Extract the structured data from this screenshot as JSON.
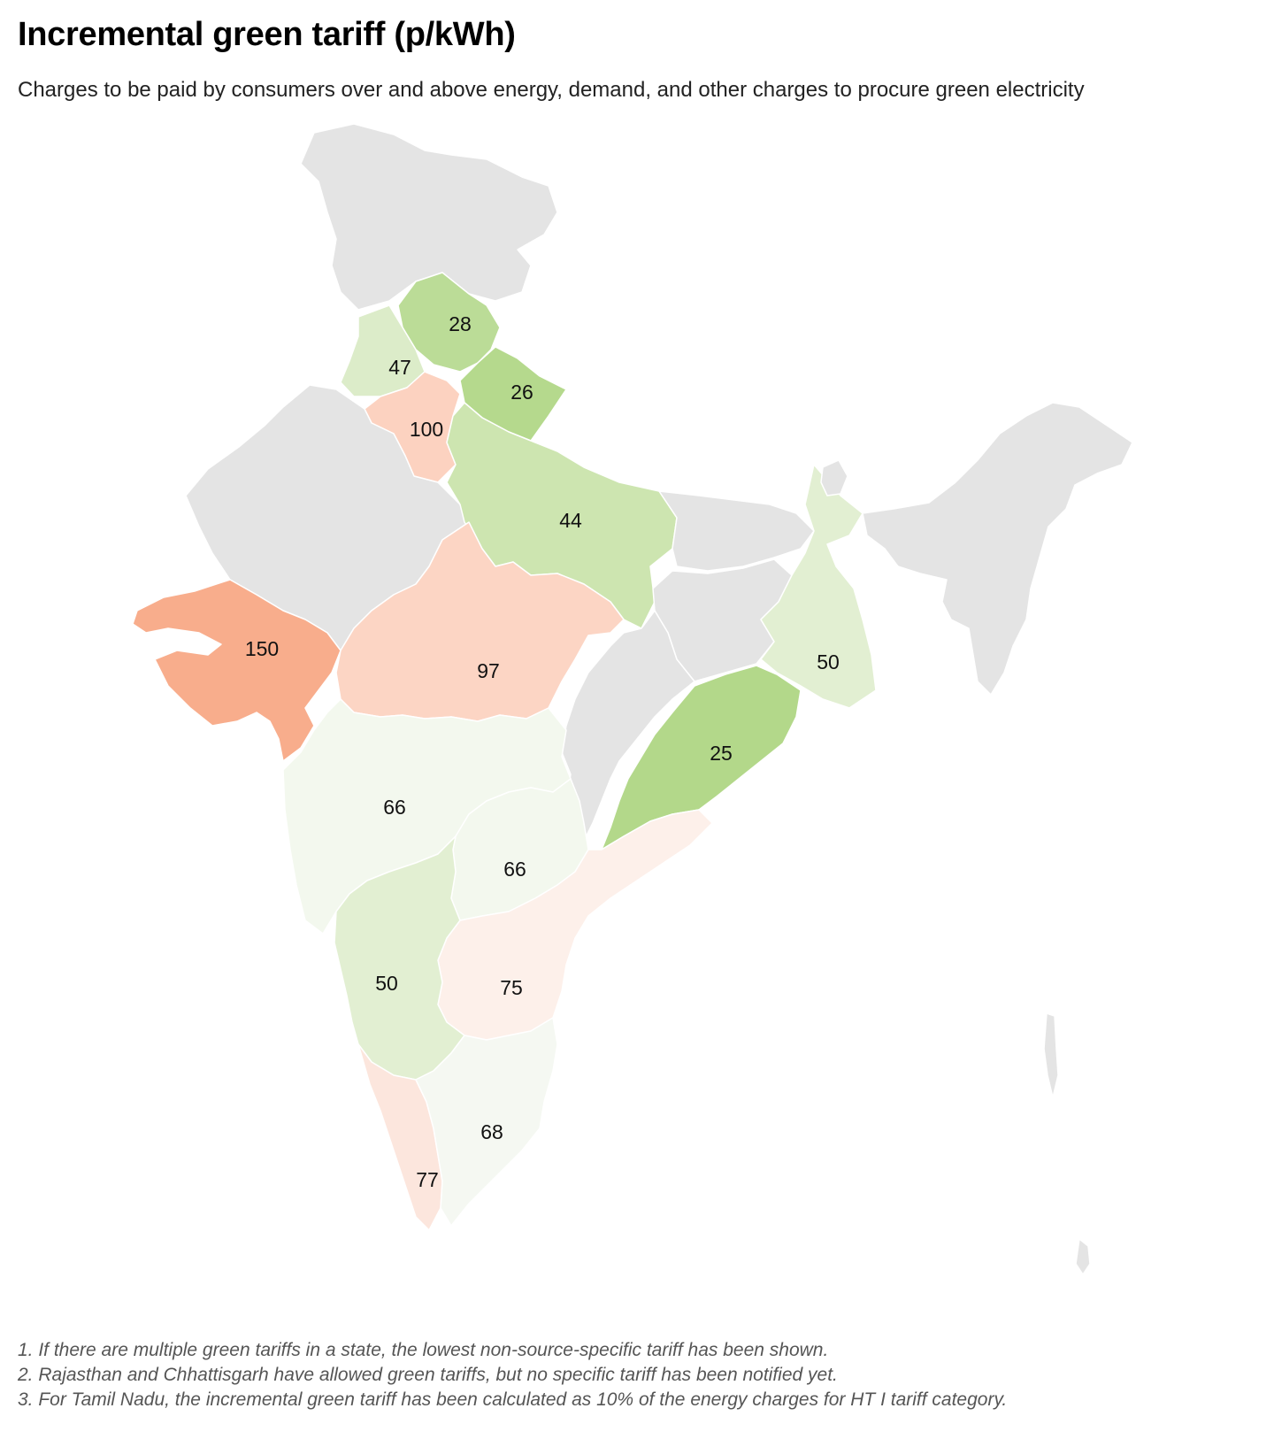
{
  "header": {
    "title": "Incremental green tariff (p/kWh)",
    "subtitle": "Charges to be paid by  consumers over and above energy, demand, and other charges to procure green electricity"
  },
  "map": {
    "colors": {
      "no_data": "#e4e4e4",
      "value_150": "#f8ad8c",
      "value_100": "#fcd2c0",
      "value_97": "#fcd5c4",
      "value_77": "#fce6dd",
      "value_75": "#fdf0ea",
      "value_68": "#f5f8f2",
      "value_66": "#f3f8ee",
      "value_50": "#e2efd2",
      "value_47": "#dcecc9",
      "value_44": "#cde5b0",
      "value_28": "#bbdc97",
      "value_26": "#b5d98d",
      "value_25": "#b3d88a"
    },
    "states": [
      {
        "name": "Himachal Pradesh",
        "value": "28"
      },
      {
        "name": "Punjab",
        "value": "47"
      },
      {
        "name": "Uttarakhand",
        "value": "26"
      },
      {
        "name": "Haryana",
        "value": "100"
      },
      {
        "name": "Uttar Pradesh",
        "value": "44"
      },
      {
        "name": "Gujarat",
        "value": "150"
      },
      {
        "name": "Madhya Pradesh",
        "value": "97"
      },
      {
        "name": "West Bengal",
        "value": "50"
      },
      {
        "name": "Odisha",
        "value": "25"
      },
      {
        "name": "Maharashtra",
        "value": "66"
      },
      {
        "name": "Telangana",
        "value": "66"
      },
      {
        "name": "Karnataka",
        "value": "50"
      },
      {
        "name": "Andhra Pradesh",
        "value": "75"
      },
      {
        "name": "Tamil Nadu",
        "value": "68"
      },
      {
        "name": "Kerala",
        "value": "77"
      }
    ]
  },
  "notes": [
    "1. If there are multiple green tariffs in a state, the lowest non-source-specific tariff has been shown.",
    "2. Rajasthan and Chhattisgarh have allowed green tariffs, but no specific tariff has been notified yet.",
    "3. For Tamil Nadu, the incremental green tariff has been calculated as 10% of the energy charges for HT I tariff category."
  ]
}
